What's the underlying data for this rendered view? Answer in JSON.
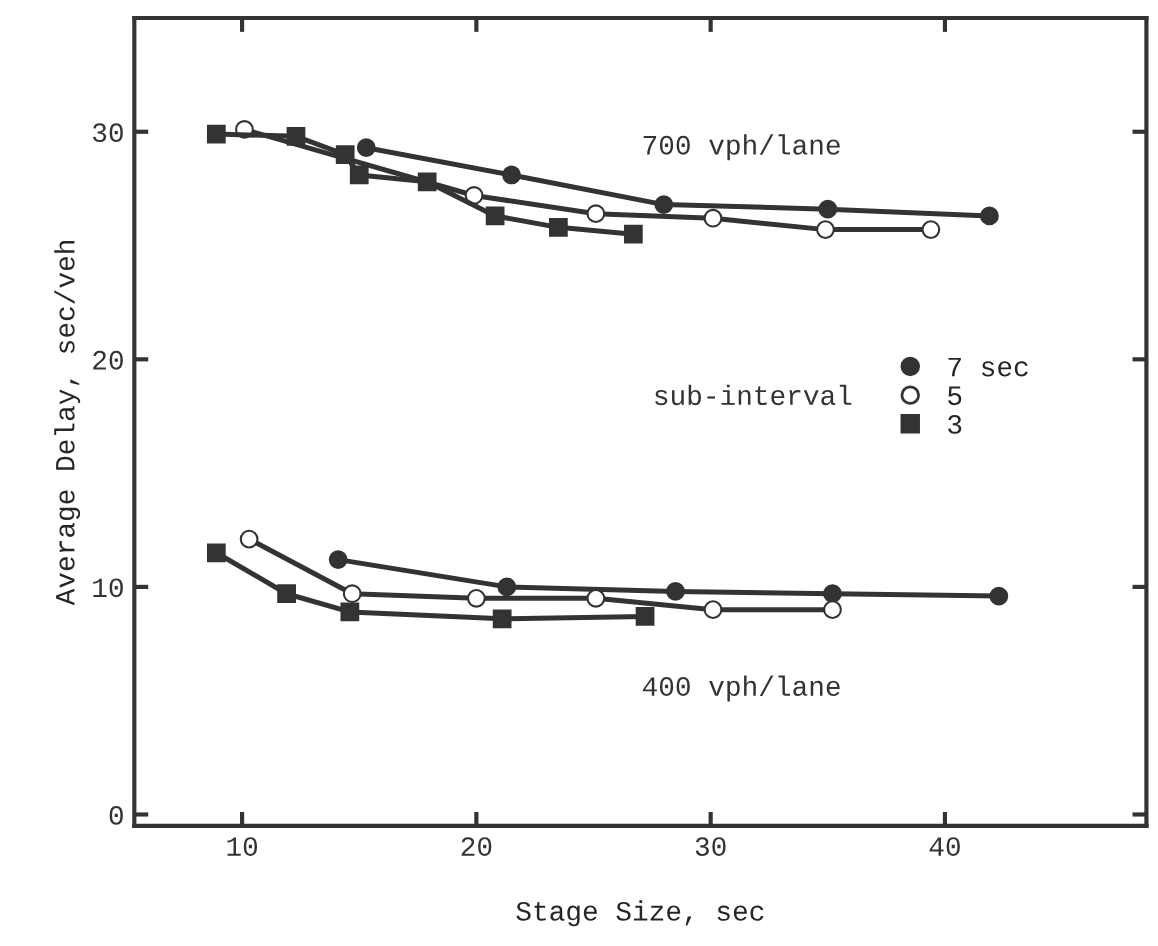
{
  "chart_data": {
    "type": "line",
    "xlabel": "Stage Size, sec",
    "ylabel": "Average Delay, sec/veh",
    "legend_title": "sub-interval",
    "legend": "right",
    "grid": false,
    "xlim": [
      5.4,
      48.6
    ],
    "ylim": [
      -0.5,
      35
    ],
    "xticks": [
      10,
      20,
      30,
      40
    ],
    "yticks": [
      0,
      10,
      20,
      30
    ],
    "annotations": [
      "700 vph/lane",
      "400 vph/lane"
    ],
    "series": [
      {
        "name": "7 sec",
        "color": "#333333",
        "marker": "circle",
        "x": [
          15.3,
          21.5,
          28.0,
          35.0,
          41.9
        ],
        "values": [
          29.3,
          28.1,
          26.8,
          26.6,
          26.3
        ]
      },
      {
        "name": "5",
        "color": "#ffffff",
        "marker": "circle",
        "x": [
          10.1,
          19.9,
          25.1,
          30.1,
          34.9,
          39.4
        ],
        "values": [
          30.1,
          27.2,
          26.4,
          26.2,
          25.7,
          25.7
        ]
      },
      {
        "name": "3",
        "color": "#333333",
        "marker": "square",
        "x": [
          8.9,
          12.3,
          14.4,
          15.0,
          17.9,
          20.8,
          23.5,
          26.7
        ],
        "values": [
          29.9,
          29.8,
          29.0,
          28.1,
          27.8,
          26.3,
          25.8,
          25.5
        ]
      },
      {
        "color": "#333333",
        "marker": "circle",
        "x": [
          14.1,
          21.3,
          28.5,
          35.2,
          42.3
        ],
        "values": [
          11.2,
          10.0,
          9.8,
          9.7,
          9.6
        ]
      },
      {
        "color": "#ffffff",
        "marker": "circle",
        "x": [
          10.3,
          14.7,
          20.0,
          25.1,
          30.1,
          35.2
        ],
        "values": [
          12.1,
          9.7,
          9.5,
          9.5,
          9.0,
          9.0
        ]
      },
      {
        "color": "#333333",
        "marker": "square",
        "x": [
          8.9,
          11.9,
          14.6,
          21.1,
          27.2
        ],
        "values": [
          11.5,
          9.7,
          8.9,
          8.6,
          8.7
        ]
      }
    ]
  }
}
